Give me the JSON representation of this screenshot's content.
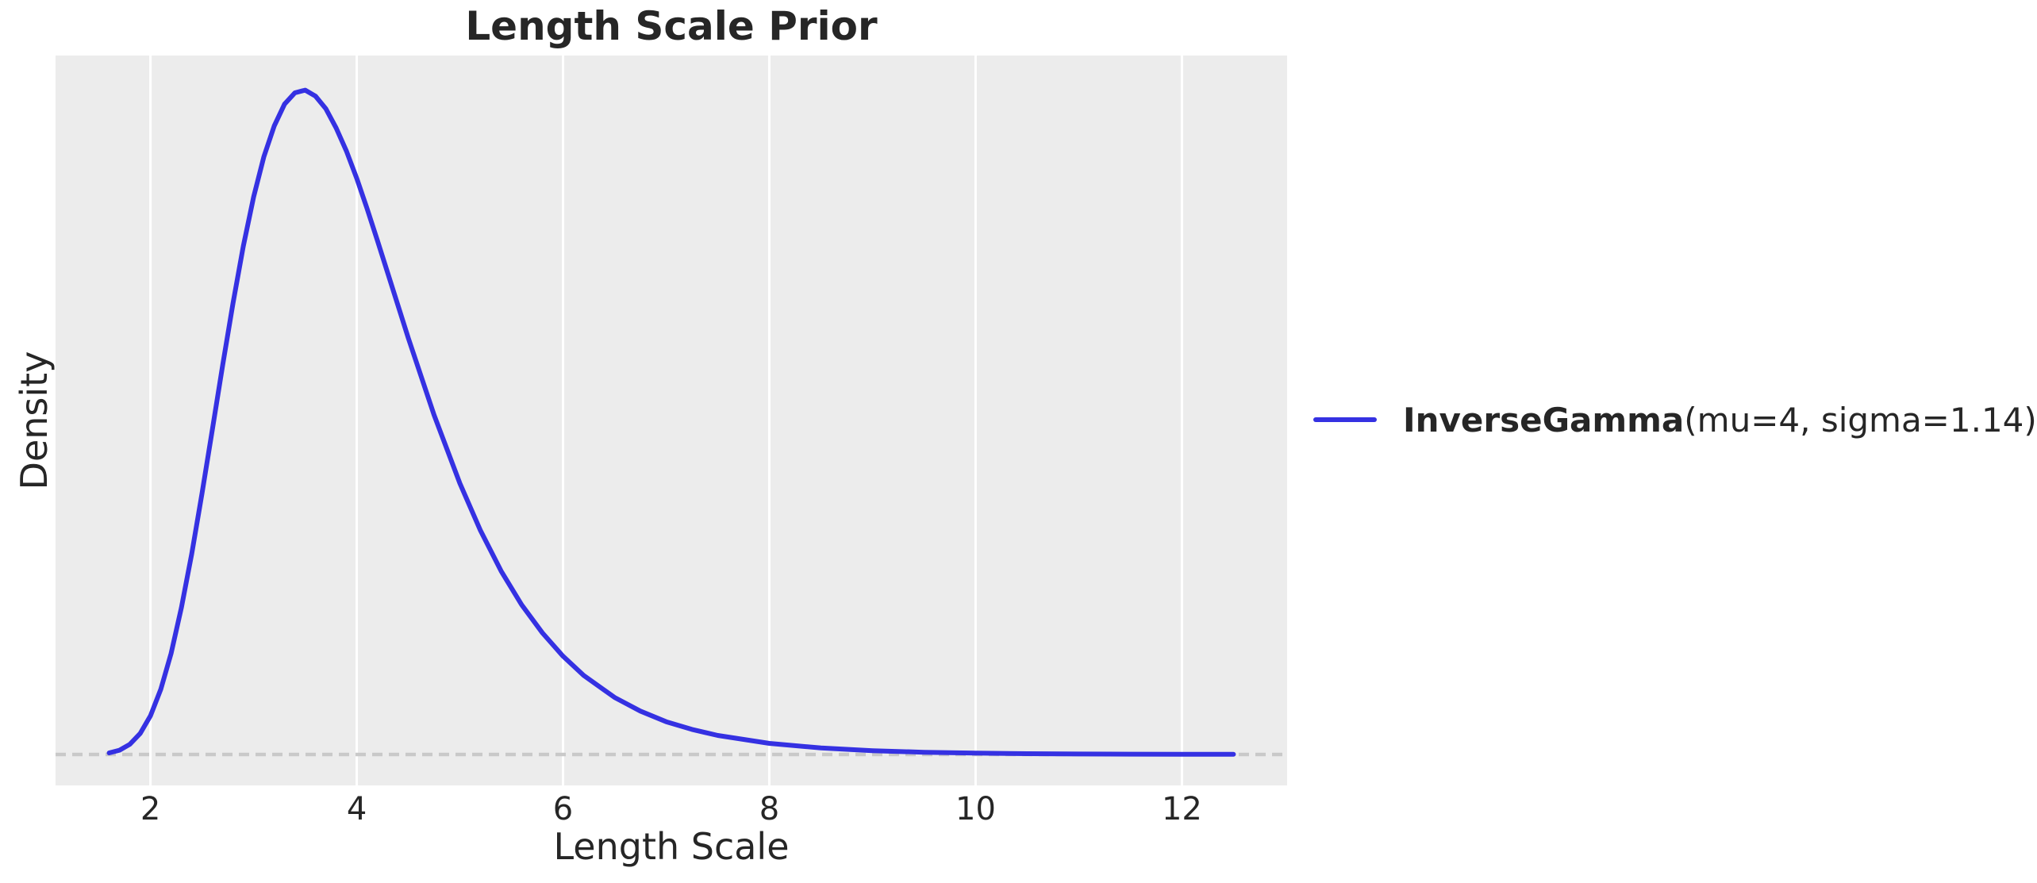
{
  "colors": {
    "page_bg": "#ffffff",
    "plot_bg": "#ececec",
    "grid": "#ffffff",
    "baseline": "#c9c9c9",
    "curve": "#3531e2",
    "text": "#262626"
  },
  "chart_data": {
    "type": "line",
    "title": "Length Scale Prior",
    "xlabel": "Length Scale",
    "ylabel": "Density",
    "xlim": [
      1.08,
      13.02
    ],
    "ylim": [
      -0.0195,
      0.4408
    ],
    "xticks": [
      2,
      4,
      6,
      8,
      10,
      12
    ],
    "yticks": [],
    "grid": {
      "vertical": true,
      "horizontal": false,
      "color": "#ffffff",
      "width": 3
    },
    "baseline": {
      "y": 0,
      "style": "dashed",
      "color": "#c9c9c9",
      "dash": "13 8",
      "width": 4.5
    },
    "legend": {
      "label_bold": "InverseGamma",
      "label_rest": "(mu=4, sigma=1.14)",
      "position": "right-of-plot",
      "frame": false
    },
    "series": [
      {
        "name": "InverseGamma(mu=4, sigma=1.14)",
        "color": "#3531e2",
        "line_width": 6,
        "distribution": {
          "family": "InverseGamma",
          "mu": 4,
          "sigma": 1.14
        },
        "peak": {
          "x": 3.5,
          "density": 0.419
        },
        "points": [
          [
            1.6,
            0.001
          ],
          [
            1.7,
            0.0027
          ],
          [
            1.8,
            0.0064
          ],
          [
            1.9,
            0.0132
          ],
          [
            2.0,
            0.0244
          ],
          [
            2.1,
            0.0411
          ],
          [
            2.2,
            0.0637
          ],
          [
            2.3,
            0.0926
          ],
          [
            2.4,
            0.1265
          ],
          [
            2.5,
            0.1647
          ],
          [
            2.6,
            0.2049
          ],
          [
            2.7,
            0.2455
          ],
          [
            2.8,
            0.2845
          ],
          [
            2.9,
            0.3205
          ],
          [
            3.0,
            0.3516
          ],
          [
            3.1,
            0.3771
          ],
          [
            3.2,
            0.3964
          ],
          [
            3.3,
            0.4102
          ],
          [
            3.4,
            0.4173
          ],
          [
            3.5,
            0.419
          ],
          [
            3.6,
            0.4152
          ],
          [
            3.7,
            0.4073
          ],
          [
            3.8,
            0.3951
          ],
          [
            3.9,
            0.3805
          ],
          [
            4.0,
            0.3633
          ],
          [
            4.1,
            0.3444
          ],
          [
            4.2,
            0.3243
          ],
          [
            4.3,
            0.3038
          ],
          [
            4.5,
            0.2627
          ],
          [
            4.75,
            0.2141
          ],
          [
            5.0,
            0.171
          ],
          [
            5.2,
            0.1412
          ],
          [
            5.4,
            0.1157
          ],
          [
            5.6,
            0.0943
          ],
          [
            5.8,
            0.0767
          ],
          [
            6.0,
            0.062
          ],
          [
            6.2,
            0.0499
          ],
          [
            6.5,
            0.036
          ],
          [
            6.75,
            0.0274
          ],
          [
            7.0,
            0.0207
          ],
          [
            7.25,
            0.0158
          ],
          [
            7.5,
            0.012
          ],
          [
            8.0,
            0.007
          ],
          [
            8.5,
            0.0041
          ],
          [
            9.0,
            0.0024
          ],
          [
            9.5,
            0.0014
          ],
          [
            10.0,
            0.0009
          ],
          [
            10.5,
            0.0005
          ],
          [
            11.0,
            0.0003
          ],
          [
            11.5,
            0.0002
          ],
          [
            12.0,
            0.0001
          ],
          [
            12.5,
            0.0001
          ]
        ]
      }
    ]
  }
}
